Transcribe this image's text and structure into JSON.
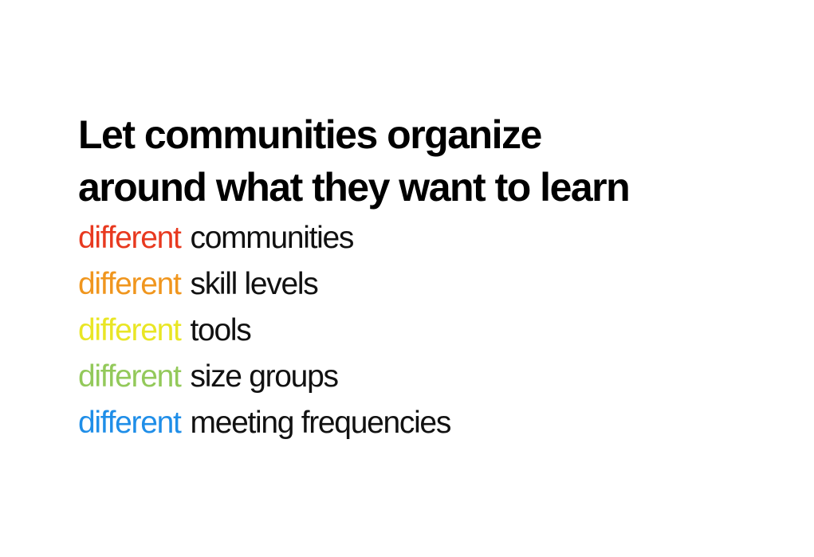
{
  "slide": {
    "title_lines": [
      "Let communities organize",
      "around what they want to learn"
    ],
    "items": [
      {
        "accent": "different",
        "rest": "communities",
        "color": "#e8391f"
      },
      {
        "accent": "different",
        "rest": "skill levels",
        "color": "#f0961e"
      },
      {
        "accent": "different",
        "rest": "tools",
        "color": "#e9e625"
      },
      {
        "accent": "different",
        "rest": "size groups",
        "color": "#93c95a"
      },
      {
        "accent": "different",
        "rest": "meeting frequencies",
        "color": "#1f8ee8"
      }
    ]
  }
}
